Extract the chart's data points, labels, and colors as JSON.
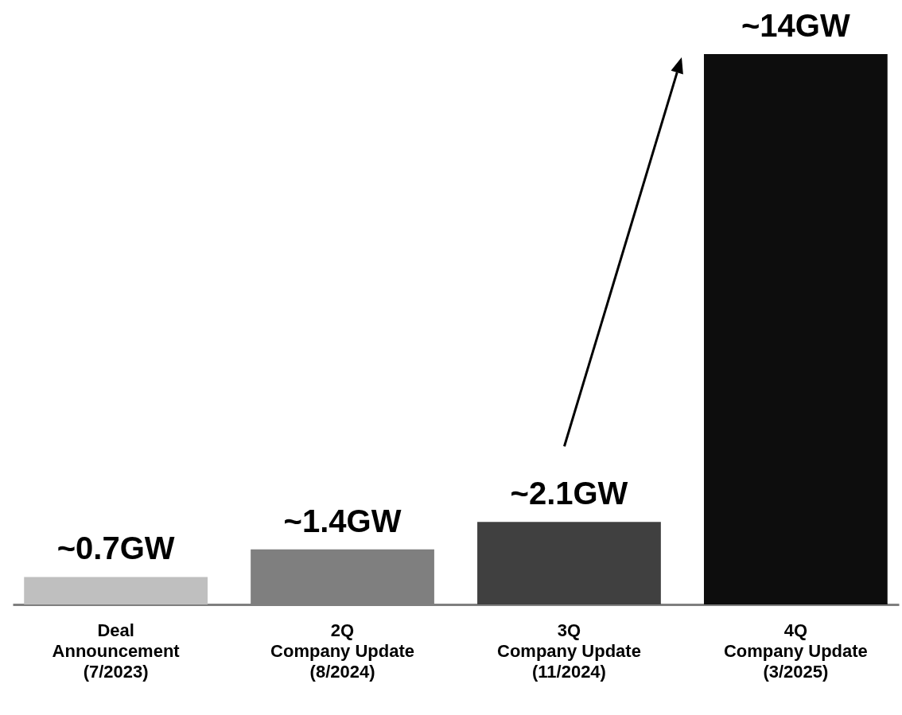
{
  "chart_data": {
    "type": "bar",
    "categories": [
      "Deal\nAnnouncement\n(7/2023)",
      "2Q\nCompany Update\n(8/2024)",
      "3Q\nCompany Update\n(11/2024)",
      "4Q\nCompany Update\n(3/2025)"
    ],
    "values": [
      0.7,
      1.4,
      2.1,
      14
    ],
    "colors": [
      "#bfbfbf",
      "#7f7f7f",
      "#404040",
      "#0d0d0d"
    ],
    "value_labels": [
      "~0.7GW",
      "~1.4GW",
      "~2.1GW",
      "~14GW"
    ],
    "grid": false
  }
}
